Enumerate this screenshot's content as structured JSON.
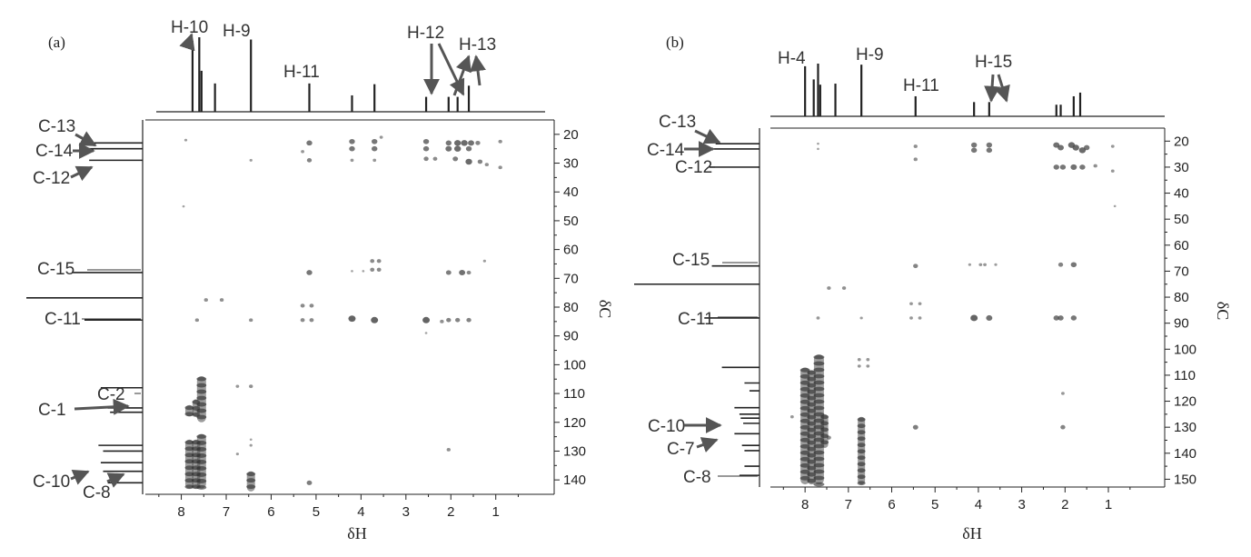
{
  "figure": {
    "colors": {
      "ink": "#222222",
      "label": "#333333",
      "arrow": "#555555",
      "crosspeak": "#4a4a4a",
      "background": "#ffffff"
    }
  },
  "chart_data": [
    {
      "type": "heatmap",
      "panel_label": "(a)",
      "xlabel": "δH",
      "ylabel": "δC",
      "x_axis": {
        "reversed": true,
        "xlim": [
          8.8,
          -0.3
        ],
        "ticks": [
          8,
          7,
          6,
          5,
          4,
          3,
          2,
          1
        ]
      },
      "y_axis": {
        "reversed": true,
        "ylim": [
          15,
          145
        ],
        "position": "right",
        "ticks": [
          20,
          30,
          40,
          50,
          60,
          70,
          80,
          90,
          100,
          110,
          120,
          130,
          140
        ]
      },
      "grid": false,
      "projection_1H": [
        {
          "x": 7.75,
          "h": 0.95
        },
        {
          "x": 7.6,
          "h": 1.0
        },
        {
          "x": 7.55,
          "h": 0.55
        },
        {
          "x": 7.25,
          "h": 0.38
        },
        {
          "x": 6.45,
          "h": 0.97
        },
        {
          "x": 5.15,
          "h": 0.38
        },
        {
          "x": 4.2,
          "h": 0.22
        },
        {
          "x": 3.7,
          "h": 0.37
        },
        {
          "x": 2.55,
          "h": 0.2
        },
        {
          "x": 2.05,
          "h": 0.2
        },
        {
          "x": 1.85,
          "h": 0.2
        },
        {
          "x": 1.6,
          "h": 0.35
        }
      ],
      "projection_13C": [
        {
          "y": 23,
          "h": 0.5
        },
        {
          "y": 25,
          "h": 0.48
        },
        {
          "y": 29,
          "h": 0.46
        },
        {
          "y": 68,
          "h": 0.6
        },
        {
          "y": 76.8,
          "h": 1.0
        },
        {
          "y": 84.5,
          "h": 0.5
        },
        {
          "y": 108,
          "h": 0.36
        },
        {
          "y": 115,
          "h": 0.3
        },
        {
          "y": 116.5,
          "h": 0.28
        },
        {
          "y": 128,
          "h": 0.38
        },
        {
          "y": 130,
          "h": 0.34
        },
        {
          "y": 134,
          "h": 0.36
        },
        {
          "y": 137,
          "h": 0.34
        },
        {
          "y": 141,
          "h": 0.3
        }
      ],
      "h_labels": [
        {
          "text": "H-10",
          "x": 7.6
        },
        {
          "text": "H-9",
          "x": 6.45
        },
        {
          "text": "H-11",
          "x": 5.15
        },
        {
          "text": "H-12",
          "x": 2.2
        },
        {
          "text": "H-13",
          "x": 1.7
        }
      ],
      "c_labels": [
        {
          "text": "C-13",
          "y": 23
        },
        {
          "text": "C-14",
          "y": 25
        },
        {
          "text": "C-12",
          "y": 29
        },
        {
          "text": "C-15",
          "y": 68
        },
        {
          "text": "C-11",
          "y": 84.5
        },
        {
          "text": "C-2",
          "y": 115
        },
        {
          "text": "C-1",
          "y": 117
        },
        {
          "text": "C-10",
          "y": 141
        },
        {
          "text": "C-8",
          "y": 141
        }
      ],
      "crosspeaks": [
        {
          "x": 7.9,
          "y": 22,
          "s": 0.4
        },
        {
          "x": 5.15,
          "y": 23,
          "s": 1
        },
        {
          "x": 5.3,
          "y": 26,
          "s": 0.5
        },
        {
          "x": 5.15,
          "y": 29,
          "s": 0.8
        },
        {
          "x": 6.45,
          "y": 29,
          "s": 0.4
        },
        {
          "x": 4.2,
          "y": 22.5,
          "s": 1
        },
        {
          "x": 4.2,
          "y": 25,
          "s": 1
        },
        {
          "x": 3.7,
          "y": 22.5,
          "s": 1
        },
        {
          "x": 3.7,
          "y": 25,
          "s": 1
        },
        {
          "x": 3.55,
          "y": 21,
          "s": 0.5
        },
        {
          "x": 4.2,
          "y": 29,
          "s": 0.5
        },
        {
          "x": 3.7,
          "y": 29,
          "s": 0.5
        },
        {
          "x": 2.55,
          "y": 22.5,
          "s": 1
        },
        {
          "x": 2.55,
          "y": 25,
          "s": 1
        },
        {
          "x": 2.55,
          "y": 28.5,
          "s": 0.8
        },
        {
          "x": 2.35,
          "y": 28.5,
          "s": 0.7
        },
        {
          "x": 2.05,
          "y": 23,
          "s": 1
        },
        {
          "x": 1.85,
          "y": 23,
          "s": 1.2
        },
        {
          "x": 1.7,
          "y": 23,
          "s": 1.2
        },
        {
          "x": 1.55,
          "y": 23,
          "s": 1.1
        },
        {
          "x": 1.4,
          "y": 23,
          "s": 0.8
        },
        {
          "x": 2.05,
          "y": 25,
          "s": 1.1
        },
        {
          "x": 1.85,
          "y": 25,
          "s": 1.2
        },
        {
          "x": 1.6,
          "y": 25,
          "s": 1
        },
        {
          "x": 1.9,
          "y": 28.5,
          "s": 0.9
        },
        {
          "x": 1.6,
          "y": 29.5,
          "s": 1.2
        },
        {
          "x": 1.35,
          "y": 29.5,
          "s": 0.8
        },
        {
          "x": 1.2,
          "y": 30.5,
          "s": 0.6
        },
        {
          "x": 0.9,
          "y": 22.5,
          "s": 0.6
        },
        {
          "x": 0.9,
          "y": 31.5,
          "s": 0.6
        },
        {
          "x": 1.25,
          "y": 64,
          "s": 0.4
        },
        {
          "x": 3.75,
          "y": 64,
          "s": 0.7
        },
        {
          "x": 3.6,
          "y": 64,
          "s": 0.7
        },
        {
          "x": 3.75,
          "y": 67,
          "s": 0.7
        },
        {
          "x": 3.6,
          "y": 67,
          "s": 0.7
        },
        {
          "x": 5.15,
          "y": 68,
          "s": 1
        },
        {
          "x": 4.2,
          "y": 67.5,
          "s": 0.3
        },
        {
          "x": 3.95,
          "y": 67.5,
          "s": 0.3
        },
        {
          "x": 2.05,
          "y": 68,
          "s": 0.9
        },
        {
          "x": 1.75,
          "y": 68,
          "s": 1.1
        },
        {
          "x": 1.6,
          "y": 68,
          "s": 0.7
        },
        {
          "x": 7.95,
          "y": 45,
          "s": 0.3
        },
        {
          "x": 7.45,
          "y": 77.5,
          "s": 0.6
        },
        {
          "x": 7.1,
          "y": 77.5,
          "s": 0.6
        },
        {
          "x": 5.3,
          "y": 79.5,
          "s": 0.7
        },
        {
          "x": 5.1,
          "y": 79.5,
          "s": 0.7
        },
        {
          "x": 5.3,
          "y": 84.5,
          "s": 0.7
        },
        {
          "x": 5.1,
          "y": 84.5,
          "s": 0.7
        },
        {
          "x": 7.65,
          "y": 84.5,
          "s": 0.6
        },
        {
          "x": 6.45,
          "y": 84.5,
          "s": 0.6
        },
        {
          "x": 4.2,
          "y": 84,
          "s": 1.3
        },
        {
          "x": 3.7,
          "y": 84.5,
          "s": 1.3
        },
        {
          "x": 2.55,
          "y": 84.5,
          "s": 1.3
        },
        {
          "x": 2.2,
          "y": 85,
          "s": 0.6
        },
        {
          "x": 2.05,
          "y": 84.5,
          "s": 0.8
        },
        {
          "x": 1.85,
          "y": 84.5,
          "s": 0.8
        },
        {
          "x": 1.6,
          "y": 84.5,
          "s": 0.8
        },
        {
          "x": 2.55,
          "y": 89,
          "s": 0.3
        },
        {
          "x": 6.75,
          "y": 107.5,
          "s": 0.5
        },
        {
          "x": 6.45,
          "y": 107.5,
          "s": 0.6
        },
        {
          "x": 6.45,
          "y": 126,
          "s": 0.3
        },
        {
          "x": 6.45,
          "y": 128,
          "s": 0.4
        },
        {
          "x": 2.05,
          "y": 129.5,
          "s": 0.6
        },
        {
          "x": 6.75,
          "y": 131,
          "s": 0.4
        },
        {
          "x": 5.15,
          "y": 141,
          "s": 0.9
        }
      ],
      "streaks": [
        {
          "x": 7.82,
          "y0": 114,
          "y1": 118,
          "w": 9
        },
        {
          "x": 7.67,
          "y0": 112,
          "y1": 118,
          "w": 8
        },
        {
          "x": 7.55,
          "y0": 104,
          "y1": 120,
          "w": 10
        },
        {
          "x": 7.82,
          "y0": 126,
          "y1": 143,
          "w": 9
        },
        {
          "x": 7.67,
          "y0": 126,
          "y1": 143,
          "w": 9
        },
        {
          "x": 7.55,
          "y0": 124,
          "y1": 143,
          "w": 10
        },
        {
          "x": 6.45,
          "y0": 137,
          "y1": 144,
          "w": 9
        }
      ]
    },
    {
      "type": "heatmap",
      "panel_label": "(b)",
      "xlabel": "δH",
      "ylabel": "δC",
      "x_axis": {
        "reversed": true,
        "xlim": [
          8.8,
          -0.3
        ],
        "ticks": [
          8,
          7,
          6,
          5,
          4,
          3,
          2,
          1
        ]
      },
      "y_axis": {
        "reversed": true,
        "ylim": [
          15,
          153
        ],
        "position": "right",
        "ticks": [
          20,
          30,
          40,
          50,
          60,
          70,
          80,
          90,
          100,
          110,
          120,
          130,
          140,
          150
        ]
      },
      "grid": false,
      "projection_1H": [
        {
          "x": 8.0,
          "h": 0.95
        },
        {
          "x": 7.8,
          "h": 0.7
        },
        {
          "x": 7.7,
          "h": 1.0
        },
        {
          "x": 7.65,
          "h": 0.6
        },
        {
          "x": 7.3,
          "h": 0.62
        },
        {
          "x": 6.7,
          "h": 0.98
        },
        {
          "x": 5.45,
          "h": 0.38
        },
        {
          "x": 4.1,
          "h": 0.27
        },
        {
          "x": 3.75,
          "h": 0.27
        },
        {
          "x": 2.2,
          "h": 0.22
        },
        {
          "x": 2.1,
          "h": 0.22
        },
        {
          "x": 1.8,
          "h": 0.38
        },
        {
          "x": 1.65,
          "h": 0.45
        }
      ],
      "projection_13C": [
        {
          "y": 21,
          "h": 0.35
        },
        {
          "y": 23,
          "h": 0.42
        },
        {
          "y": 30,
          "h": 0.4
        },
        {
          "y": 68,
          "h": 0.38
        },
        {
          "y": 75,
          "h": 1.0
        },
        {
          "y": 88,
          "h": 0.44
        },
        {
          "y": 107,
          "h": 0.3
        },
        {
          "y": 113,
          "h": 0.12
        },
        {
          "y": 116,
          "h": 0.08
        },
        {
          "y": 122.5,
          "h": 0.2
        },
        {
          "y": 125,
          "h": 0.16
        },
        {
          "y": 126.5,
          "h": 0.15
        },
        {
          "y": 128.5,
          "h": 0.13
        },
        {
          "y": 132.5,
          "h": 0.2
        },
        {
          "y": 137,
          "h": 0.14
        },
        {
          "y": 139,
          "h": 0.12
        },
        {
          "y": 145,
          "h": 0.12
        },
        {
          "y": 148.5,
          "h": 0.16
        }
      ],
      "h_labels": [
        {
          "text": "H-4",
          "x": 8.0
        },
        {
          "text": "H-9",
          "x": 6.7
        },
        {
          "text": "H-11",
          "x": 5.45
        },
        {
          "text": "H-15",
          "x": 3.9
        }
      ],
      "c_labels": [
        {
          "text": "C-13",
          "y": 21
        },
        {
          "text": "C-14",
          "y": 23
        },
        {
          "text": "C-12",
          "y": 30
        },
        {
          "text": "C-15",
          "y": 68
        },
        {
          "text": "C-11",
          "y": 88
        },
        {
          "text": "C-10",
          "y": 130
        },
        {
          "text": "C-7",
          "y": 135
        },
        {
          "text": "C-8",
          "y": 149
        }
      ],
      "crosspeaks": [
        {
          "x": 7.7,
          "y": 21,
          "s": 0.3
        },
        {
          "x": 7.7,
          "y": 23,
          "s": 0.3
        },
        {
          "x": 5.45,
          "y": 22,
          "s": 0.6
        },
        {
          "x": 5.45,
          "y": 27,
          "s": 0.6
        },
        {
          "x": 4.1,
          "y": 21.5,
          "s": 1
        },
        {
          "x": 4.1,
          "y": 23.5,
          "s": 1
        },
        {
          "x": 3.75,
          "y": 21.5,
          "s": 1
        },
        {
          "x": 3.75,
          "y": 23.5,
          "s": 1
        },
        {
          "x": 2.2,
          "y": 21.5,
          "s": 1.1
        },
        {
          "x": 2.1,
          "y": 22.5,
          "s": 1.1
        },
        {
          "x": 1.85,
          "y": 21.5,
          "s": 1.2
        },
        {
          "x": 1.75,
          "y": 22.5,
          "s": 1.2
        },
        {
          "x": 1.6,
          "y": 23.5,
          "s": 1.2
        },
        {
          "x": 1.5,
          "y": 22.5,
          "s": 1
        },
        {
          "x": 2.2,
          "y": 30,
          "s": 1
        },
        {
          "x": 2.05,
          "y": 30,
          "s": 1
        },
        {
          "x": 1.8,
          "y": 30,
          "s": 1.1
        },
        {
          "x": 1.6,
          "y": 30,
          "s": 1
        },
        {
          "x": 1.3,
          "y": 29.5,
          "s": 0.6
        },
        {
          "x": 0.9,
          "y": 22,
          "s": 0.5
        },
        {
          "x": 0.9,
          "y": 31.5,
          "s": 0.5
        },
        {
          "x": 0.85,
          "y": 45,
          "s": 0.3
        },
        {
          "x": 5.45,
          "y": 68,
          "s": 0.8
        },
        {
          "x": 4.2,
          "y": 67.5,
          "s": 0.4
        },
        {
          "x": 3.95,
          "y": 67.5,
          "s": 0.5
        },
        {
          "x": 3.85,
          "y": 67.5,
          "s": 0.5
        },
        {
          "x": 3.6,
          "y": 67.5,
          "s": 0.4
        },
        {
          "x": 2.1,
          "y": 67.5,
          "s": 0.8
        },
        {
          "x": 1.8,
          "y": 67.5,
          "s": 1
        },
        {
          "x": 7.45,
          "y": 76.5,
          "s": 0.6
        },
        {
          "x": 7.1,
          "y": 76.5,
          "s": 0.6
        },
        {
          "x": 5.55,
          "y": 82.5,
          "s": 0.5
        },
        {
          "x": 5.35,
          "y": 82.5,
          "s": 0.5
        },
        {
          "x": 5.55,
          "y": 88,
          "s": 0.5
        },
        {
          "x": 5.35,
          "y": 88,
          "s": 0.5
        },
        {
          "x": 7.7,
          "y": 88,
          "s": 0.5
        },
        {
          "x": 6.7,
          "y": 88,
          "s": 0.4
        },
        {
          "x": 4.1,
          "y": 88,
          "s": 1.3
        },
        {
          "x": 3.75,
          "y": 88,
          "s": 1.1
        },
        {
          "x": 2.2,
          "y": 88,
          "s": 1
        },
        {
          "x": 2.1,
          "y": 88,
          "s": 1
        },
        {
          "x": 1.8,
          "y": 88,
          "s": 1
        },
        {
          "x": 6.75,
          "y": 104,
          "s": 0.5
        },
        {
          "x": 6.55,
          "y": 104,
          "s": 0.5
        },
        {
          "x": 6.75,
          "y": 106.5,
          "s": 0.5
        },
        {
          "x": 6.55,
          "y": 106.5,
          "s": 0.5
        },
        {
          "x": 8.3,
          "y": 126,
          "s": 0.5
        },
        {
          "x": 5.45,
          "y": 130,
          "s": 0.9
        },
        {
          "x": 2.05,
          "y": 117,
          "s": 0.5
        },
        {
          "x": 2.05,
          "y": 130,
          "s": 0.8
        },
        {
          "x": 7.45,
          "y": 134,
          "s": 0.7
        }
      ],
      "streaks": [
        {
          "x": 8.0,
          "y0": 107,
          "y1": 152,
          "w": 10
        },
        {
          "x": 7.85,
          "y0": 108,
          "y1": 152,
          "w": 9
        },
        {
          "x": 7.68,
          "y0": 102,
          "y1": 152,
          "w": 11
        },
        {
          "x": 7.55,
          "y0": 125,
          "y1": 138,
          "w": 8
        },
        {
          "x": 6.7,
          "y0": 126,
          "y1": 152,
          "w": 8
        }
      ]
    }
  ]
}
